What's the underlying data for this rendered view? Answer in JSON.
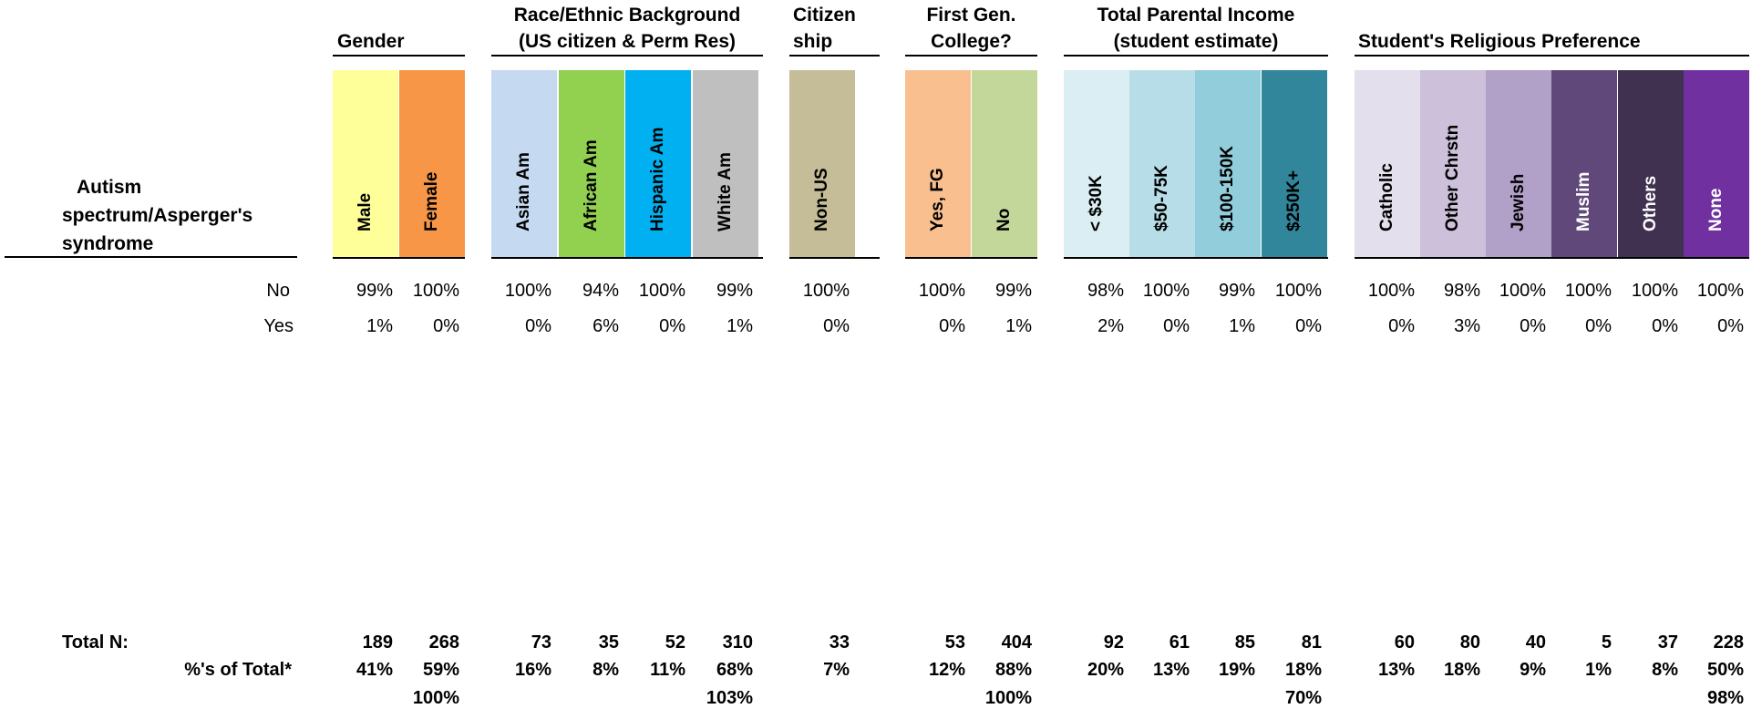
{
  "row_title": "Autism spectrum/Asperger's syndrome",
  "row_title_lines": [
    "Autism",
    "spectrum/Asperger's",
    "syndrome"
  ],
  "groups": [
    {
      "name_lines": [
        "Gender"
      ]
    },
    {
      "name_lines": [
        "Race/Ethnic Background",
        "(US citizen & Perm Res)"
      ]
    },
    {
      "name_lines": [
        "Citizen",
        "ship"
      ]
    },
    {
      "name_lines": [
        "First Gen.",
        "College?"
      ]
    },
    {
      "name_lines": [
        "Total Parental Income",
        "(student estimate)"
      ]
    },
    {
      "name_lines": [
        "Student's Religious Preference"
      ]
    }
  ],
  "columns": [
    {
      "label": "Male",
      "color": "#FFFF99",
      "text_color": "#000000",
      "no": "99%",
      "yes": "1%",
      "total_n": "189",
      "pct_total": "41%",
      "group_sum": ""
    },
    {
      "label": "Female",
      "color": "#F79646",
      "text_color": "#000000",
      "no": "100%",
      "yes": "0%",
      "total_n": "268",
      "pct_total": "59%",
      "group_sum": "100%"
    },
    {
      "label": "Asian Am",
      "color": "#C5D9F1",
      "text_color": "#000000",
      "no": "100%",
      "yes": "0%",
      "total_n": "73",
      "pct_total": "16%",
      "group_sum": ""
    },
    {
      "label": "African Am",
      "color": "#92D050",
      "text_color": "#000000",
      "no": "94%",
      "yes": "6%",
      "total_n": "35",
      "pct_total": "8%",
      "group_sum": ""
    },
    {
      "label": "Hispanic Am",
      "color": "#00B0F0",
      "text_color": "#000000",
      "no": "100%",
      "yes": "0%",
      "total_n": "52",
      "pct_total": "11%",
      "group_sum": ""
    },
    {
      "label": "White Am",
      "color": "#BFBFBF",
      "text_color": "#000000",
      "no": "99%",
      "yes": "1%",
      "total_n": "310",
      "pct_total": "68%",
      "group_sum": "103%"
    },
    {
      "label": "Non-US",
      "color": "#C4BD97",
      "text_color": "#000000",
      "no": "100%",
      "yes": "0%",
      "total_n": "33",
      "pct_total": "7%",
      "group_sum": ""
    },
    {
      "label": "Yes, FG",
      "color": "#FABF8F",
      "text_color": "#000000",
      "no": "100%",
      "yes": "0%",
      "total_n": "53",
      "pct_total": "12%",
      "group_sum": ""
    },
    {
      "label": "No",
      "color": "#C4D79B",
      "text_color": "#000000",
      "no": "99%",
      "yes": "1%",
      "total_n": "404",
      "pct_total": "88%",
      "group_sum": "100%"
    },
    {
      "label": "< $30K",
      "color": "#DAEEF3",
      "text_color": "#000000",
      "no": "98%",
      "yes": "2%",
      "total_n": "92",
      "pct_total": "20%",
      "group_sum": ""
    },
    {
      "label": "$50-75K",
      "color": "#B7DEE8",
      "text_color": "#000000",
      "no": "100%",
      "yes": "0%",
      "total_n": "61",
      "pct_total": "13%",
      "group_sum": ""
    },
    {
      "label": "$100-150K",
      "color": "#92CDDC",
      "text_color": "#000000",
      "no": "99%",
      "yes": "1%",
      "total_n": "85",
      "pct_total": "19%",
      "group_sum": ""
    },
    {
      "label": "$250K+",
      "color": "#31869B",
      "text_color": "#000000",
      "no": "100%",
      "yes": "0%",
      "total_n": "81",
      "pct_total": "18%",
      "group_sum": "70%"
    },
    {
      "label": "Catholic",
      "color": "#E4DFEC",
      "text_color": "#000000",
      "no": "100%",
      "yes": "0%",
      "total_n": "60",
      "pct_total": "13%",
      "group_sum": ""
    },
    {
      "label": "Other Chrstn",
      "color": "#CCC0DA",
      "text_color": "#000000",
      "no": "98%",
      "yes": "3%",
      "total_n": "80",
      "pct_total": "18%",
      "group_sum": ""
    },
    {
      "label": "Jewish",
      "color": "#B1A0C7",
      "text_color": "#000000",
      "no": "100%",
      "yes": "0%",
      "total_n": "40",
      "pct_total": "9%",
      "group_sum": ""
    },
    {
      "label": "Muslim",
      "color": "#60497A",
      "text_color": "#FFFFFF",
      "no": "100%",
      "yes": "0%",
      "total_n": "5",
      "pct_total": "1%",
      "group_sum": ""
    },
    {
      "label": "Others",
      "color": "#403151",
      "text_color": "#FFFFFF",
      "no": "100%",
      "yes": "0%",
      "total_n": "37",
      "pct_total": "8%",
      "group_sum": ""
    },
    {
      "label": "None",
      "color": "#7030A0",
      "text_color": "#FFFFFF",
      "no": "100%",
      "yes": "0%",
      "total_n": "228",
      "pct_total": "50%",
      "group_sum": "98%"
    }
  ],
  "row_labels": {
    "no": "No",
    "yes": "Yes",
    "total_n": "Total N:",
    "pct_total": "%'s of Total*"
  }
}
